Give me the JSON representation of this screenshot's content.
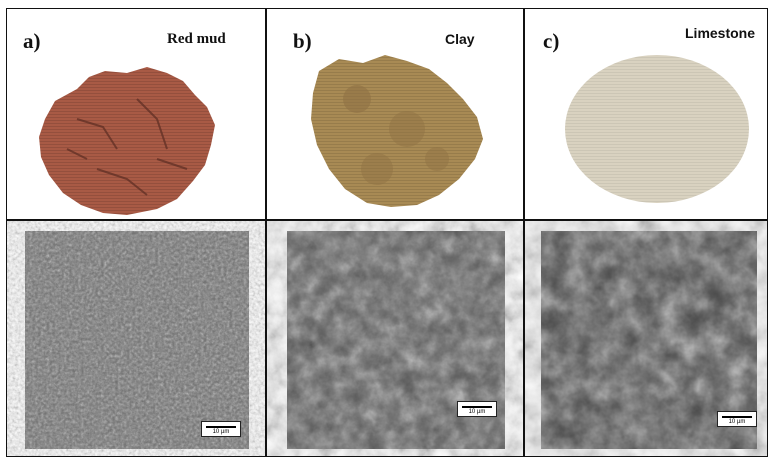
{
  "panels": [
    {
      "letter": "a)",
      "name": "Red mud",
      "sample_color": "#a85a45",
      "scale_label": "10 µm"
    },
    {
      "letter": "b)",
      "name": "Clay",
      "sample_color": "#a88a54",
      "scale_label": "10 µm"
    },
    {
      "letter": "c)",
      "name": "Limestone",
      "sample_color": "#d9d2c0",
      "scale_label": "10 µm"
    }
  ]
}
